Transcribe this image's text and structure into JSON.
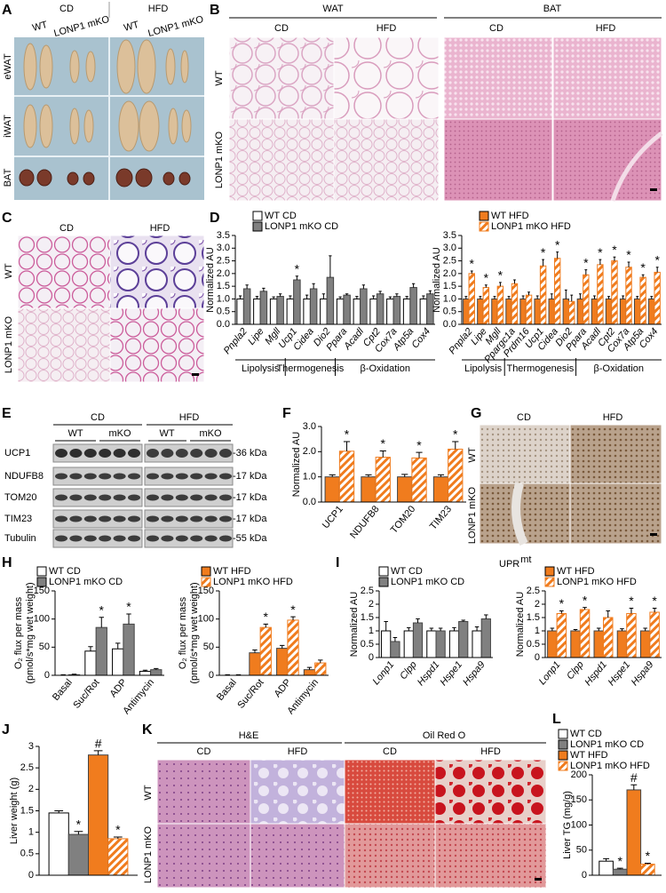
{
  "panel_labels": [
    "A",
    "B",
    "C",
    "D",
    "E",
    "F",
    "G",
    "H",
    "I",
    "J",
    "K",
    "L"
  ],
  "photo_A": {
    "conditions": [
      "CD",
      "HFD"
    ],
    "genotypes": [
      "WT",
      "LONP1 mKO",
      "WT",
      "LONP1 mKO"
    ],
    "depots": [
      "eWAT",
      "iWAT",
      "BAT"
    ]
  },
  "histology_B": {
    "tissues": [
      "WAT",
      "BAT"
    ],
    "conditions": [
      "CD",
      "HFD",
      "CD",
      "HFD"
    ],
    "genotypes": [
      "WT",
      "LONP1 mKO"
    ]
  },
  "histology_C": {
    "conditions": [
      "CD",
      "HFD"
    ],
    "genotypes": [
      "WT",
      "LONP1 mKO"
    ]
  },
  "blot_E": {
    "conditions": [
      "CD",
      "HFD"
    ],
    "genotypes": [
      "WT",
      "mKO",
      "WT",
      "mKO"
    ],
    "proteins": [
      "UCP1",
      "NDUFB8",
      "TOM20",
      "TIM23",
      "Tubulin"
    ],
    "markers": [
      "-36 kDa",
      "-17 kDa",
      "-17 kDa",
      "-17 kDa",
      "-55 kDa"
    ]
  },
  "histology_G": {
    "conditions": [
      "CD",
      "HFD"
    ],
    "genotypes": [
      "WT",
      "LONP1 mKO"
    ]
  },
  "histology_K": {
    "stains": [
      "H&E",
      "Oil Red O"
    ],
    "conditions": [
      "CD",
      "HFD",
      "CD",
      "HFD"
    ],
    "genotypes": [
      "WT",
      "LONP1 mKO"
    ]
  },
  "chart_data": [
    {
      "type": "bar",
      "ylabel": "Normalized AU",
      "categories": [
        "Pnpla2",
        "Lipe",
        "Mgll",
        "Ucp1",
        "Cidea",
        "Dio2",
        "Ppara",
        "Acadl",
        "Cpt2",
        "Cox7a",
        "Atp5a",
        "Cox4"
      ],
      "category_groups": [
        "Lipolysis",
        "Lipolysis",
        "Lipolysis",
        "Thermogenesis",
        "Thermogenesis",
        "Thermogenesis",
        "β-Oxidation",
        "β-Oxidation",
        "β-Oxidation",
        "β-Oxidation",
        "β-Oxidation",
        "β-Oxidation"
      ],
      "series": [
        {
          "name": "WT CD",
          "color": "#ffffff",
          "hatched": false,
          "values": [
            1,
            1,
            1,
            1,
            1,
            1,
            1,
            1,
            1,
            1,
            1,
            1
          ],
          "errors": [
            0.12,
            0.1,
            0.08,
            0.12,
            0.15,
            0.2,
            0.08,
            0.1,
            0.12,
            0.08,
            0.1,
            0.12
          ],
          "significance": [
            null,
            null,
            null,
            null,
            null,
            null,
            null,
            null,
            null,
            null,
            null,
            null
          ]
        },
        {
          "name": "LONP1 mKO CD",
          "color": "#808080",
          "hatched": false,
          "values": [
            1.4,
            1.3,
            1.1,
            1.75,
            1.4,
            1.85,
            1.15,
            1.4,
            1.2,
            1.1,
            1.45,
            1.2
          ],
          "errors": [
            0.15,
            0.12,
            0.1,
            0.15,
            0.2,
            0.85,
            0.05,
            0.15,
            0.1,
            0.1,
            0.15,
            0.12
          ],
          "significance": [
            null,
            null,
            null,
            "*",
            null,
            null,
            null,
            null,
            null,
            null,
            null,
            null
          ]
        }
      ],
      "ylim": [
        0,
        3.5
      ],
      "yticks": [
        {
          "value": 0,
          "label": "0.0"
        },
        0.5,
        {
          "value": 1,
          "label": "1.0"
        },
        1.5,
        {
          "value": 2,
          "label": "2.0"
        },
        2.5,
        {
          "value": 3,
          "label": "3.0"
        },
        3.5
      ],
      "legend": "top",
      "xticks_rotated": true,
      "xticks_italic": true
    },
    {
      "type": "bar",
      "ylabel": "Normalized AU",
      "categories": [
        "Pnpla2",
        "Lipe",
        "Mgll",
        "Ppargc1a",
        "Prdm16",
        "Ucp1",
        "Cidea",
        "Dio2",
        "Ppara",
        "Acadl",
        "Cpt2",
        "Cox7a",
        "Atp5a",
        "Cox4"
      ],
      "category_groups": [
        "Lipolysis",
        "Lipolysis",
        "Lipolysis",
        "Thermogenesis",
        "Thermogenesis",
        "Thermogenesis",
        "Thermogenesis",
        "Thermogenesis",
        "β-Oxidation",
        "β-Oxidation",
        "β-Oxidation",
        "β-Oxidation",
        "β-Oxidation",
        "β-Oxidation"
      ],
      "series": [
        {
          "name": "WT HFD",
          "color": "#f07c1e",
          "hatched": false,
          "values": [
            1,
            1,
            1,
            1,
            1,
            1,
            1,
            1,
            1,
            1,
            1,
            1,
            1,
            1
          ],
          "errors": [
            0.1,
            0.1,
            0.1,
            0.1,
            0.12,
            0.12,
            0.2,
            0.35,
            0.2,
            0.12,
            0.1,
            0.12,
            0.1,
            0.1
          ],
          "significance": [
            null,
            null,
            null,
            null,
            null,
            null,
            null,
            null,
            null,
            null,
            null,
            null,
            null,
            null
          ]
        },
        {
          "name": "LONP1 mKO HFD",
          "color": "#f07c1e",
          "hatched": true,
          "values": [
            2.0,
            1.45,
            1.5,
            1.6,
            1.15,
            2.3,
            2.6,
            0.9,
            1.95,
            2.35,
            2.5,
            2.25,
            1.85,
            2.05
          ],
          "errors": [
            0.1,
            0.1,
            0.15,
            0.15,
            0.12,
            0.25,
            0.25,
            0.25,
            0.2,
            0.2,
            0.15,
            0.2,
            0.1,
            0.2
          ],
          "significance": [
            "*",
            "*",
            "*",
            null,
            null,
            "*",
            "*",
            null,
            "*",
            "*",
            "*",
            "*",
            "*",
            "*"
          ]
        }
      ],
      "ylim": [
        0,
        3.5
      ],
      "yticks": [
        {
          "value": 0,
          "label": "0.0"
        },
        0.5,
        {
          "value": 1,
          "label": "1.0"
        },
        1.5,
        {
          "value": 2,
          "label": "2.0"
        },
        2.5,
        {
          "value": 3,
          "label": "3.0"
        },
        3.5
      ],
      "legend": "top",
      "xticks_rotated": true,
      "xticks_italic": true
    },
    {
      "type": "bar",
      "ylabel": "Normalized AU",
      "categories": [
        "UCP1",
        "NDUFB8",
        "TOM20",
        "TIM23"
      ],
      "series": [
        {
          "color": "#f07c1e",
          "hatched": false,
          "values": [
            1,
            1,
            1,
            1
          ],
          "errors": [
            0.08,
            0.08,
            0.1,
            0.08
          ],
          "significance": [
            null,
            null,
            null,
            null
          ]
        },
        {
          "color": "#f07c1e",
          "hatched": true,
          "values": [
            2.02,
            1.78,
            1.75,
            2.1
          ],
          "errors": [
            0.38,
            0.25,
            0.22,
            0.3
          ],
          "significance": [
            "*",
            "*",
            "*",
            "*"
          ]
        }
      ],
      "ylim": [
        0,
        3
      ],
      "yticks": [
        {
          "value": 0,
          "label": "0.0"
        },
        {
          "value": 1,
          "label": "1.0"
        },
        {
          "value": 2,
          "label": "2.0"
        },
        {
          "value": 3,
          "label": "3.0"
        }
      ],
      "xticks_rotated": true,
      "xticks_italic": false
    },
    {
      "type": "bar",
      "ylabel": [
        "O₂ flux per mass",
        "(pmol/s*mg wet weight)"
      ],
      "categories": [
        "Basal",
        "Suc/Rot",
        "ADP",
        "Antimycin"
      ],
      "series": [
        {
          "name": "WT CD",
          "color": "#ffffff",
          "hatched": false,
          "values": [
            0,
            43,
            47,
            7
          ],
          "errors": [
            1,
            8,
            10,
            2
          ],
          "significance": [
            null,
            null,
            null,
            null
          ]
        },
        {
          "name": "LONP1 mKO CD",
          "color": "#808080",
          "hatched": false,
          "values": [
            1,
            85,
            91,
            10
          ],
          "errors": [
            1,
            18,
            18,
            2
          ],
          "significance": [
            null,
            "*",
            "*",
            null
          ]
        }
      ],
      "ylim": [
        0,
        150
      ],
      "yticks": [
        0,
        50,
        100,
        150
      ],
      "legend": "top",
      "xticks_rotated": true,
      "xticks_italic": false
    },
    {
      "type": "bar",
      "ylabel": [
        "O₂ flux per mass",
        "(pmol/s*mg wet weight)"
      ],
      "categories": [
        "Basal",
        "Suc/Rot",
        "ADP",
        "Antimycin"
      ],
      "series": [
        {
          "name": "WT HFD",
          "color": "#f07c1e",
          "hatched": false,
          "values": [
            0,
            40,
            48,
            10
          ],
          "errors": [
            1,
            5,
            5,
            4
          ],
          "significance": [
            null,
            null,
            null,
            null
          ]
        },
        {
          "name": "LONP1 mKO HFD",
          "color": "#f07c1e",
          "hatched": true,
          "values": [
            0,
            85,
            98,
            22
          ],
          "errors": [
            1,
            6,
            6,
            5
          ],
          "significance": [
            null,
            "*",
            "*",
            null
          ]
        }
      ],
      "ylim": [
        0,
        150
      ],
      "yticks": [
        0,
        50,
        100,
        150
      ],
      "legend": "top",
      "xticks_rotated": true,
      "xticks_italic": false
    },
    {
      "type": "bar",
      "ylabel": "Normalized AU",
      "categories": [
        "Lonp1",
        "Clpp",
        "Hspd1",
        "Hspe1",
        "Hspa9"
      ],
      "series": [
        {
          "name": "WT CD",
          "color": "#ffffff",
          "hatched": false,
          "values": [
            1,
            1,
            1,
            1,
            1
          ],
          "errors": [
            0.35,
            0.12,
            0.1,
            0.12,
            0.15
          ],
          "significance": [
            null,
            null,
            null,
            null,
            null
          ]
        },
        {
          "name": "LONP1 mKO CD",
          "color": "#808080",
          "hatched": false,
          "values": [
            0.6,
            1.3,
            1.0,
            1.35,
            1.45
          ],
          "errors": [
            0.15,
            0.15,
            0.1,
            0.05,
            0.15
          ],
          "significance": [
            null,
            null,
            null,
            null,
            null
          ]
        }
      ],
      "ylim": [
        0,
        2.5
      ],
      "yticks": [
        0,
        0.5,
        1,
        1.5,
        2,
        2.5
      ],
      "legend": "top",
      "xticks_rotated": true,
      "xticks_italic": true
    },
    {
      "type": "bar",
      "title": "UPR",
      "title_superscript": "mt",
      "ylabel": "Normalized AU",
      "categories": [
        "Lonp1",
        "Clpp",
        "Hspd1",
        "Hspe1",
        "Hspa9"
      ],
      "series": [
        {
          "name": "WT HFD",
          "color": "#f07c1e",
          "hatched": false,
          "values": [
            1,
            1,
            1,
            1,
            1
          ],
          "errors": [
            0.1,
            0.05,
            0.1,
            0.08,
            0.1
          ],
          "significance": [
            null,
            null,
            null,
            null,
            null
          ]
        },
        {
          "name": "LONP1 mKO HFD",
          "color": "#f07c1e",
          "hatched": true,
          "values": [
            1.65,
            1.8,
            1.5,
            1.65,
            1.7
          ],
          "errors": [
            0.1,
            0.08,
            0.25,
            0.2,
            0.15
          ],
          "significance": [
            "*",
            "*",
            null,
            "*",
            "*"
          ]
        }
      ],
      "ylim": [
        0,
        2.5
      ],
      "yticks": [
        0,
        0.5,
        1,
        1.5,
        2,
        2.5
      ],
      "legend": "top",
      "xticks_rotated": true,
      "xticks_italic": true
    },
    {
      "type": "bar",
      "ylabel": "Liver weight (g)",
      "categories": [
        null
      ],
      "series": [
        {
          "color": "#ffffff",
          "hatched": false,
          "values": [
            1.45
          ],
          "errors": [
            0.05
          ],
          "significance": [
            null
          ]
        },
        {
          "color": "#808080",
          "hatched": false,
          "values": [
            0.95
          ],
          "errors": [
            0.07
          ],
          "significance": [
            "*"
          ]
        },
        {
          "color": "#f07c1e",
          "hatched": false,
          "values": [
            2.8
          ],
          "errors": [
            0.1
          ],
          "significance": [
            "#"
          ]
        },
        {
          "color": "#f07c1e",
          "hatched": true,
          "values": [
            0.85
          ],
          "errors": [
            0.04
          ],
          "significance": [
            "*"
          ]
        }
      ],
      "ylim": [
        0,
        3
      ],
      "yticks": [
        0,
        0.5,
        1,
        1.5,
        2,
        2.5,
        3
      ]
    },
    {
      "type": "bar",
      "ylabel": "Liver TG (mg/g)",
      "categories": [
        null
      ],
      "series": [
        {
          "name": "WT CD",
          "color": "#ffffff",
          "hatched": false,
          "values": [
            28
          ],
          "errors": [
            5
          ],
          "significance": [
            null
          ]
        },
        {
          "name": "LONP1 mKO CD",
          "color": "#808080",
          "hatched": false,
          "values": [
            12
          ],
          "errors": [
            2
          ],
          "significance": [
            "*"
          ]
        },
        {
          "name": "WT HFD",
          "color": "#f07c1e",
          "hatched": false,
          "values": [
            170
          ],
          "errors": [
            10
          ],
          "significance": [
            "#"
          ]
        },
        {
          "name": "LONP1 mKO HFD",
          "color": "#f07c1e",
          "hatched": true,
          "values": [
            22
          ],
          "errors": [
            2
          ],
          "significance": [
            "*"
          ]
        }
      ],
      "ylim": [
        0,
        200
      ],
      "yticks": [
        0,
        50,
        100,
        150,
        200
      ],
      "legend": "top"
    }
  ]
}
